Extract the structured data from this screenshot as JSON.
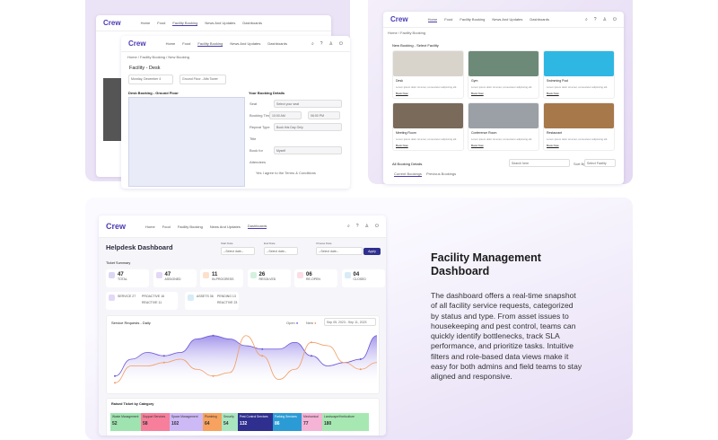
{
  "brand": {
    "name": "Crew",
    "accent": "#4b3bb5"
  },
  "nav": {
    "items": [
      "Home",
      "Food",
      "Facility Booking",
      "News And Updates",
      "Dashboards"
    ]
  },
  "booking_desk": {
    "breadcrumb": "Home / Facility Booking / New Booking",
    "title": "Facility - Desk",
    "date_value": "Monday, December 4",
    "location_value": "Ground Floor - Alfa Tower",
    "floor_title": "Desk Booking - Ground Floor",
    "details_title": "Your Booking Details",
    "detail_fields": [
      "Seat",
      "Booking Time",
      "Repeat Type",
      "Title",
      "Book for",
      "Attendees"
    ],
    "seat_placeholder": "Select your seat",
    "time_from": "10:00 AM",
    "time_to": "06:00 PM",
    "repeat_value": "Book this Day Only",
    "book_for_value": "Myself",
    "agree_text": "Yes I agree to the Terms & Conditions"
  },
  "booking_select": {
    "breadcrumb": "Home / Facility Booking",
    "title": "New Booking - Select Facility",
    "facilities": [
      {
        "name": "Desk",
        "color": "#d8d4cc"
      },
      {
        "name": "Gym",
        "color": "#6d8a78"
      },
      {
        "name": "Swimming Pool",
        "color": "#2fb7e4"
      },
      {
        "name": "Meeting Room",
        "color": "#7a6a5a"
      },
      {
        "name": "Conference Room",
        "color": "#9aa0a6"
      },
      {
        "name": "Restaurant",
        "color": "#a7784a"
      }
    ],
    "book_now": "Book Now",
    "desc": "Lorem ipsum dolor sit amet, consectetur adipiscing elit.",
    "all_title": "All Booking Details",
    "search_placeholder": "Search here",
    "sort_label": "Sort By",
    "sort_value": "Select Facility",
    "tabs": [
      "Current Bookings",
      "Previous Bookings"
    ]
  },
  "dashboard": {
    "title": "Helpdesk Dashboard",
    "filters": [
      {
        "label": "Start Date",
        "value": "--Select date--"
      },
      {
        "label": "End Date",
        "value": "--Select date--"
      },
      {
        "label": "Choose Date",
        "value": "--Select date--"
      }
    ],
    "apply": "Apply",
    "summary_title": "Ticket Summary",
    "stats": [
      {
        "value": "47",
        "label": "TOTAL",
        "color": "#dcd6f5"
      },
      {
        "value": "47",
        "label": "ASSIGNED",
        "color": "#e3d8f8"
      },
      {
        "value": "11",
        "label": "IN-PROGRESS",
        "color": "#fde0cc"
      },
      {
        "value": "26",
        "label": "RESOLVED",
        "color": "#d4f1de"
      },
      {
        "value": "06",
        "label": "RE-OPEN",
        "color": "#fbdde6"
      },
      {
        "value": "04",
        "label": "CLOSED",
        "color": "#d7ecf7"
      }
    ],
    "service": {
      "label": "SERVICE",
      "count": "27",
      "proactive": "PROACTIVE 16",
      "reactive": "REACTIVE 11"
    },
    "assets": {
      "label": "ASSETS",
      "count": "36",
      "pending": "PENDING 13",
      "reactive": "REACTIVE 23"
    },
    "chart_title": "Service Requests - Daily",
    "date_range": "Sep 05, 2023 - Sep 11, 2023",
    "category_title": "Raised Ticket by Category",
    "categories": [
      {
        "name": "Waste Management",
        "value": "52",
        "color": "#9fe3b0"
      },
      {
        "name": "Support Services",
        "value": "58",
        "color": "#f77f9c"
      },
      {
        "name": "Space Management",
        "value": "102",
        "color": "#cdb9f5"
      },
      {
        "name": "Plumbing",
        "value": "64",
        "color": "#f7a25f"
      },
      {
        "name": "Security",
        "value": "54",
        "color": "#a9e6bf"
      },
      {
        "name": "Pest Control Services",
        "value": "132",
        "color": "#2f2f8f"
      },
      {
        "name": "Parking Services",
        "value": "86",
        "color": "#2b9bd6"
      },
      {
        "name": "Mechanical",
        "value": "77",
        "color": "#f5b3d6"
      },
      {
        "name": "Landscape/Horticulture",
        "value": "180",
        "color": "#a7e8b2"
      }
    ]
  },
  "chart_data": {
    "type": "line",
    "title": "Service Requests - Daily",
    "ylim": [
      0,
      16
    ],
    "series": [
      {
        "name": "Open",
        "color": "#6a55d6",
        "values": [
          3,
          8,
          10,
          9,
          10,
          14,
          15,
          14,
          12,
          11,
          11,
          13,
          9,
          6,
          7,
          8,
          15
        ]
      },
      {
        "name": "New",
        "color": "#f29b5f",
        "values": [
          1,
          6,
          6,
          7,
          8,
          5,
          3,
          4,
          15,
          9,
          2,
          5,
          13,
          12,
          7,
          5,
          7
        ]
      }
    ]
  },
  "description": {
    "title": "Facility Management Dashboard",
    "body": "The dashboard offers a real-time snapshot of all facility service requests, categorized by status and type. From asset issues to housekeeping and pest control, teams can quickly identify bottlenecks, track SLA performance, and prioritize tasks. Intuitive filters and role-based data views make it easy for both admins and field teams to stay aligned and responsive."
  }
}
